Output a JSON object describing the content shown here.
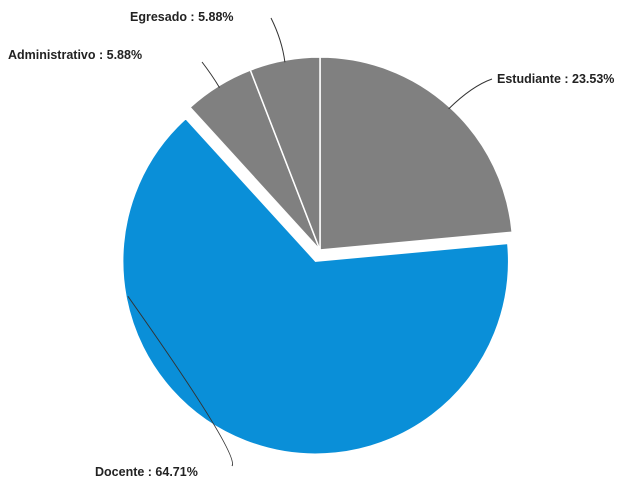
{
  "chart_data": {
    "type": "pie",
    "categories": [
      "Estudiante",
      "Docente",
      "Administrativo",
      "Egresado"
    ],
    "values": [
      23.53,
      64.71,
      5.88,
      5.88
    ],
    "labels": [
      "Estudiante : 23.53%",
      "Docente : 64.71%",
      "Administrativo  : 5.88%",
      "Egresado : 5.88%"
    ],
    "exploded": [
      "Docente"
    ],
    "title": "",
    "legend": "none",
    "grid": false
  },
  "colors": {
    "Estudiante": "#808080",
    "Docente": "#0a8fd8",
    "Administrativo": "#808080",
    "Egresado": "#808080",
    "separator": "#ffffff"
  }
}
